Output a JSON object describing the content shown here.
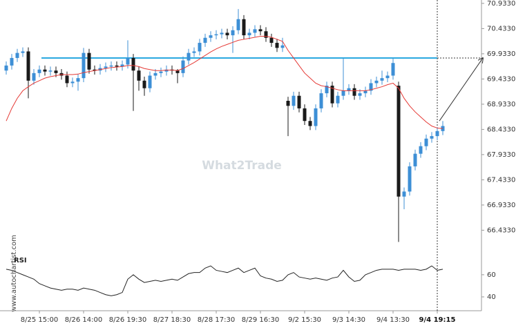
{
  "chart_data": {
    "type": "candlestick",
    "categories": [
      null,
      null,
      null,
      null,
      null,
      null,
      "8/25 15:00",
      null,
      null,
      null,
      null,
      null,
      null,
      null,
      "8/26 14:00",
      null,
      null,
      null,
      null,
      null,
      null,
      null,
      "8/26 19:30",
      null,
      null,
      null,
      null,
      null,
      null,
      null,
      "8/27 18:30",
      null,
      null,
      null,
      null,
      null,
      null,
      null,
      "8/28 17:30",
      null,
      null,
      null,
      null,
      null,
      null,
      null,
      "8/29 16:30",
      null,
      null,
      null,
      null,
      null,
      null,
      null,
      "9/2 15:30",
      null,
      null,
      null,
      null,
      null,
      null,
      null,
      "9/3 14:30",
      null,
      null,
      null,
      null,
      null,
      null,
      null,
      "9/4 13:30",
      null,
      null,
      null,
      null,
      null,
      null,
      null,
      "9/4 19:15",
      null
    ],
    "open": [
      69.6,
      69.7,
      69.85,
      69.95,
      69.98,
      69.4,
      69.55,
      69.62,
      69.58,
      69.6,
      69.55,
      69.5,
      69.35,
      69.38,
      69.45,
      69.95,
      69.62,
      69.6,
      69.65,
      69.68,
      69.7,
      69.68,
      69.72,
      69.85,
      69.6,
      69.4,
      69.25,
      69.5,
      69.55,
      69.58,
      69.62,
      69.6,
      69.55,
      69.8,
      69.95,
      69.98,
      70.15,
      70.25,
      70.3,
      70.32,
      70.35,
      70.3,
      70.4,
      70.62,
      70.3,
      70.35,
      70.42,
      70.38,
      70.25,
      70.15,
      70.05,
      69.0,
      68.9,
      69.1,
      68.85,
      68.6,
      68.5,
      68.85,
      69.15,
      69.3,
      68.95,
      69.1,
      69.2,
      69.25,
      69.1,
      69.15,
      69.2,
      69.35,
      69.4,
      69.45,
      69.5,
      69.3,
      67.1,
      67.2,
      67.7,
      67.95,
      68.1,
      68.25,
      68.3,
      68.4
    ],
    "high": [
      69.78,
      69.93,
      70.03,
      70.06,
      70.06,
      69.63,
      69.7,
      69.7,
      69.68,
      69.68,
      69.63,
      69.58,
      69.46,
      69.53,
      70.05,
      70.03,
      69.7,
      69.73,
      69.76,
      69.78,
      69.78,
      69.8,
      70.2,
      69.93,
      69.68,
      69.48,
      69.58,
      69.63,
      69.66,
      69.7,
      69.7,
      69.63,
      69.88,
      70.03,
      70.06,
      70.23,
      70.33,
      70.38,
      70.4,
      70.43,
      70.43,
      70.48,
      70.82,
      70.7,
      70.43,
      70.5,
      70.5,
      70.46,
      70.33,
      70.23,
      70.25,
      69.08,
      69.18,
      69.18,
      68.93,
      68.68,
      68.93,
      69.23,
      69.38,
      69.38,
      69.18,
      69.85,
      69.33,
      69.33,
      69.23,
      69.28,
      69.43,
      69.48,
      69.6,
      69.58,
      69.85,
      69.38,
      67.28,
      67.78,
      68.03,
      68.18,
      68.33,
      68.38,
      68.48,
      68.6
    ],
    "low": [
      69.52,
      69.62,
      69.77,
      69.87,
      69.05,
      69.32,
      69.47,
      69.5,
      69.5,
      69.47,
      69.42,
      69.27,
      69.27,
      69.2,
      69.37,
      69.54,
      69.52,
      69.52,
      69.57,
      69.6,
      69.6,
      69.6,
      69.64,
      68.8,
      69.2,
      69.1,
      69.17,
      69.42,
      69.47,
      69.5,
      69.52,
      69.35,
      69.47,
      69.72,
      69.87,
      69.9,
      70.07,
      70.17,
      70.22,
      70.24,
      70.22,
      69.95,
      70.32,
      70.22,
      70.22,
      70.27,
      70.3,
      70.17,
      70.07,
      69.97,
      69.97,
      68.3,
      68.82,
      68.77,
      68.52,
      68.42,
      68.42,
      68.77,
      69.07,
      68.87,
      68.87,
      69.02,
      69.12,
      69.02,
      69.02,
      69.07,
      69.12,
      69.27,
      69.32,
      69.37,
      69.42,
      66.2,
      66.85,
      67.12,
      67.62,
      67.87,
      68.02,
      68.17,
      68.22,
      68.32
    ],
    "close": [
      69.7,
      69.85,
      69.95,
      69.98,
      69.4,
      69.55,
      69.62,
      69.58,
      69.6,
      69.55,
      69.5,
      69.35,
      69.38,
      69.45,
      69.95,
      69.62,
      69.6,
      69.65,
      69.68,
      69.7,
      69.68,
      69.72,
      69.85,
      69.6,
      69.4,
      69.25,
      69.5,
      69.55,
      69.58,
      69.62,
      69.6,
      69.55,
      69.8,
      69.95,
      69.98,
      70.15,
      70.25,
      70.3,
      70.32,
      70.35,
      70.3,
      70.4,
      70.62,
      70.3,
      70.35,
      70.42,
      70.38,
      70.25,
      70.15,
      70.05,
      70.1,
      68.9,
      69.1,
      68.85,
      68.6,
      68.5,
      68.85,
      69.15,
      69.3,
      68.95,
      69.1,
      69.2,
      69.25,
      69.1,
      69.15,
      69.2,
      69.35,
      69.4,
      69.45,
      69.5,
      69.75,
      67.1,
      67.2,
      67.7,
      67.95,
      68.1,
      68.25,
      68.3,
      68.4,
      68.5
    ],
    "up_color": "#3d8fd6",
    "down_color": "#1a1a1a",
    "ylim": [
      66.0,
      71.0
    ],
    "yticks": [
      {
        "value": 70.933,
        "label": "70.9330"
      },
      {
        "value": 70.433,
        "label": "70.4330"
      },
      {
        "value": 69.933,
        "label": "69.9330"
      },
      {
        "value": 69.433,
        "label": "69.4330"
      },
      {
        "value": 68.933,
        "label": "68.9330"
      },
      {
        "value": 68.433,
        "label": "68.4330"
      },
      {
        "value": 67.933,
        "label": "67.9330"
      },
      {
        "value": 67.433,
        "label": "67.4330"
      },
      {
        "value": 66.933,
        "label": "66.9330"
      },
      {
        "value": 66.433,
        "label": "66.4330"
      }
    ],
    "ma": {
      "color": "#e53935",
      "values": [
        68.6,
        68.85,
        69.05,
        69.2,
        69.28,
        69.35,
        69.4,
        69.45,
        69.48,
        69.5,
        69.52,
        69.52,
        69.52,
        69.53,
        69.56,
        69.58,
        69.6,
        69.62,
        69.64,
        69.66,
        69.67,
        69.68,
        69.7,
        69.7,
        69.68,
        69.64,
        69.62,
        69.6,
        69.6,
        69.61,
        69.61,
        69.6,
        69.64,
        69.7,
        69.76,
        69.83,
        69.9,
        69.97,
        70.03,
        70.08,
        70.12,
        70.16,
        70.2,
        70.22,
        70.24,
        70.26,
        70.28,
        70.28,
        70.26,
        70.22,
        70.18,
        70.0,
        69.85,
        69.7,
        69.55,
        69.45,
        69.35,
        69.3,
        69.28,
        69.25,
        69.22,
        69.2,
        69.2,
        69.2,
        69.2,
        69.2,
        69.22,
        69.25,
        69.28,
        69.32,
        69.35,
        69.25,
        69.05,
        68.9,
        68.78,
        68.68,
        68.58,
        68.5,
        68.46,
        68.45
      ]
    },
    "level": {
      "value": 69.85,
      "color": "#29a8e0"
    },
    "rsi": {
      "label": "RSI",
      "color": "#222",
      "values": [
        65,
        64,
        62,
        60,
        58,
        56,
        52,
        50,
        48,
        47,
        46,
        47,
        47,
        46,
        48,
        47,
        46,
        44,
        42,
        41,
        42,
        44,
        56,
        60,
        56,
        53,
        54,
        55,
        54,
        55,
        56,
        55,
        58,
        61,
        62,
        62,
        66,
        68,
        64,
        63,
        62,
        64,
        66,
        62,
        64,
        66,
        59,
        57,
        56,
        54,
        55,
        60,
        62,
        58,
        57,
        56,
        57,
        56,
        55,
        57,
        58,
        64,
        58,
        54,
        55,
        60,
        62,
        64,
        65,
        65,
        65,
        64,
        65,
        65,
        65,
        64,
        65,
        68,
        64,
        65
      ],
      "ylim": [
        27.5,
        80.5
      ],
      "yticks": [
        60,
        40
      ]
    },
    "watermark": "What2Trade",
    "source": "www.autochartist.com"
  }
}
